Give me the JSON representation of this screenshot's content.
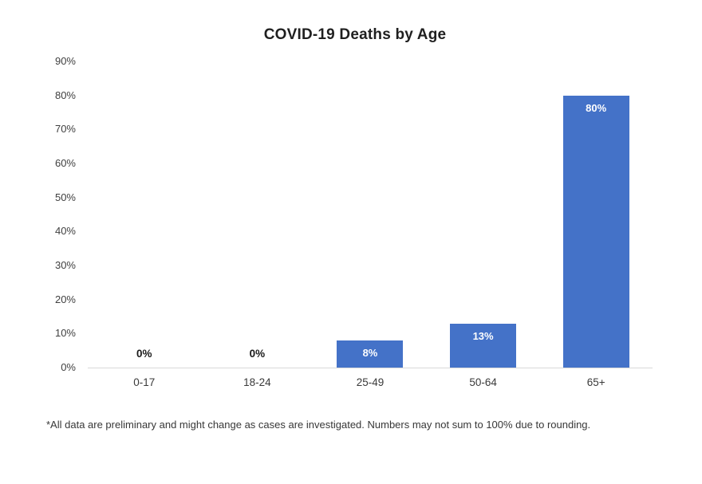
{
  "title": "COVID-19 Deaths by Age",
  "footnote": "*All data are preliminary and might change as cases are investigated. Numbers may not sum to 100% due to rounding.",
  "chart_data": {
    "type": "bar",
    "title": "COVID-19 Deaths by Age",
    "categories": [
      "0-17",
      "18-24",
      "25-49",
      "50-64",
      "65+"
    ],
    "values": [
      0,
      0,
      8,
      13,
      80
    ],
    "data_labels": [
      "0%",
      "0%",
      "8%",
      "13%",
      "80%"
    ],
    "xlabel": "",
    "ylabel": "",
    "y_tick_labels": [
      "0%",
      "10%",
      "20%",
      "30%",
      "40%",
      "50%",
      "60%",
      "70%",
      "80%",
      "90%"
    ],
    "y_tick_values": [
      0,
      10,
      20,
      30,
      40,
      50,
      60,
      70,
      80,
      90
    ],
    "ylim": [
      0,
      90
    ],
    "grid": false,
    "legend": "none",
    "colors": {
      "bar": "#4472c8",
      "axis_line": "#d9d9d9",
      "tick_text": "#404040",
      "inside_label_text": "#ffffff",
      "zero_label_text": "#1a1a1a",
      "title_text": "#1f1f1f",
      "footnote_text": "#373737"
    }
  }
}
